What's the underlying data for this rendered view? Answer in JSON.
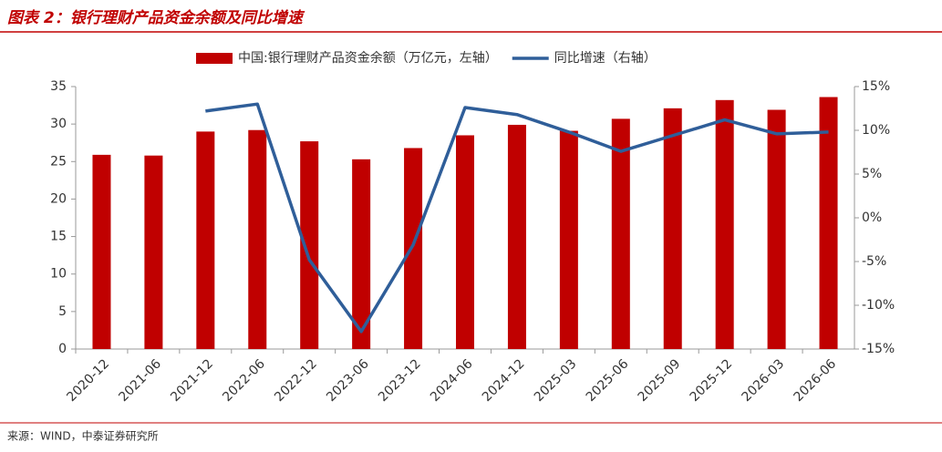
{
  "chart_data": {
    "type": "bar-line",
    "title": "图表 2：银行理财产品资金余额及同比增速",
    "source": "来源：WIND，中泰证券研究所",
    "categories": [
      "2020-12",
      "2021-06",
      "2021-12",
      "2022-06",
      "2022-12",
      "2023-06",
      "2023-12",
      "2024-06",
      "2024-12",
      "2025-03",
      "2025-06",
      "2025-09",
      "2025-12",
      "2026-03",
      "2026-06"
    ],
    "series": [
      {
        "name": "中国:银行理财产品资金余额（万亿元，左轴）",
        "type": "bar",
        "color": "#c00000",
        "values": [
          25.9,
          25.8,
          29.0,
          29.2,
          27.7,
          25.3,
          26.8,
          28.5,
          29.9,
          29.1,
          30.7,
          32.1,
          33.2,
          31.9,
          33.6
        ]
      },
      {
        "name": "同比增速（右轴）",
        "type": "line",
        "axis": "y2",
        "color": "#2f5e99",
        "values": [
          null,
          null,
          12.2,
          13.0,
          -4.8,
          -13.0,
          -3.1,
          12.6,
          11.8,
          9.8,
          7.6,
          9.4,
          11.2,
          9.6,
          9.8
        ]
      }
    ],
    "ylim": [
      0,
      35
    ],
    "yticks": [
      0,
      5,
      10,
      15,
      20,
      25,
      30,
      35
    ],
    "y2lim": [
      -15,
      15
    ],
    "y2ticks": [
      {
        "value": -15,
        "label": "-15%"
      },
      {
        "value": -10,
        "label": "-10%"
      },
      {
        "value": -5,
        "label": "-5%"
      },
      {
        "value": 0,
        "label": "0%"
      },
      {
        "value": 5,
        "label": "5%"
      },
      {
        "value": 10,
        "label": "10%"
      },
      {
        "value": 15,
        "label": "15%"
      }
    ],
    "grid": false
  }
}
